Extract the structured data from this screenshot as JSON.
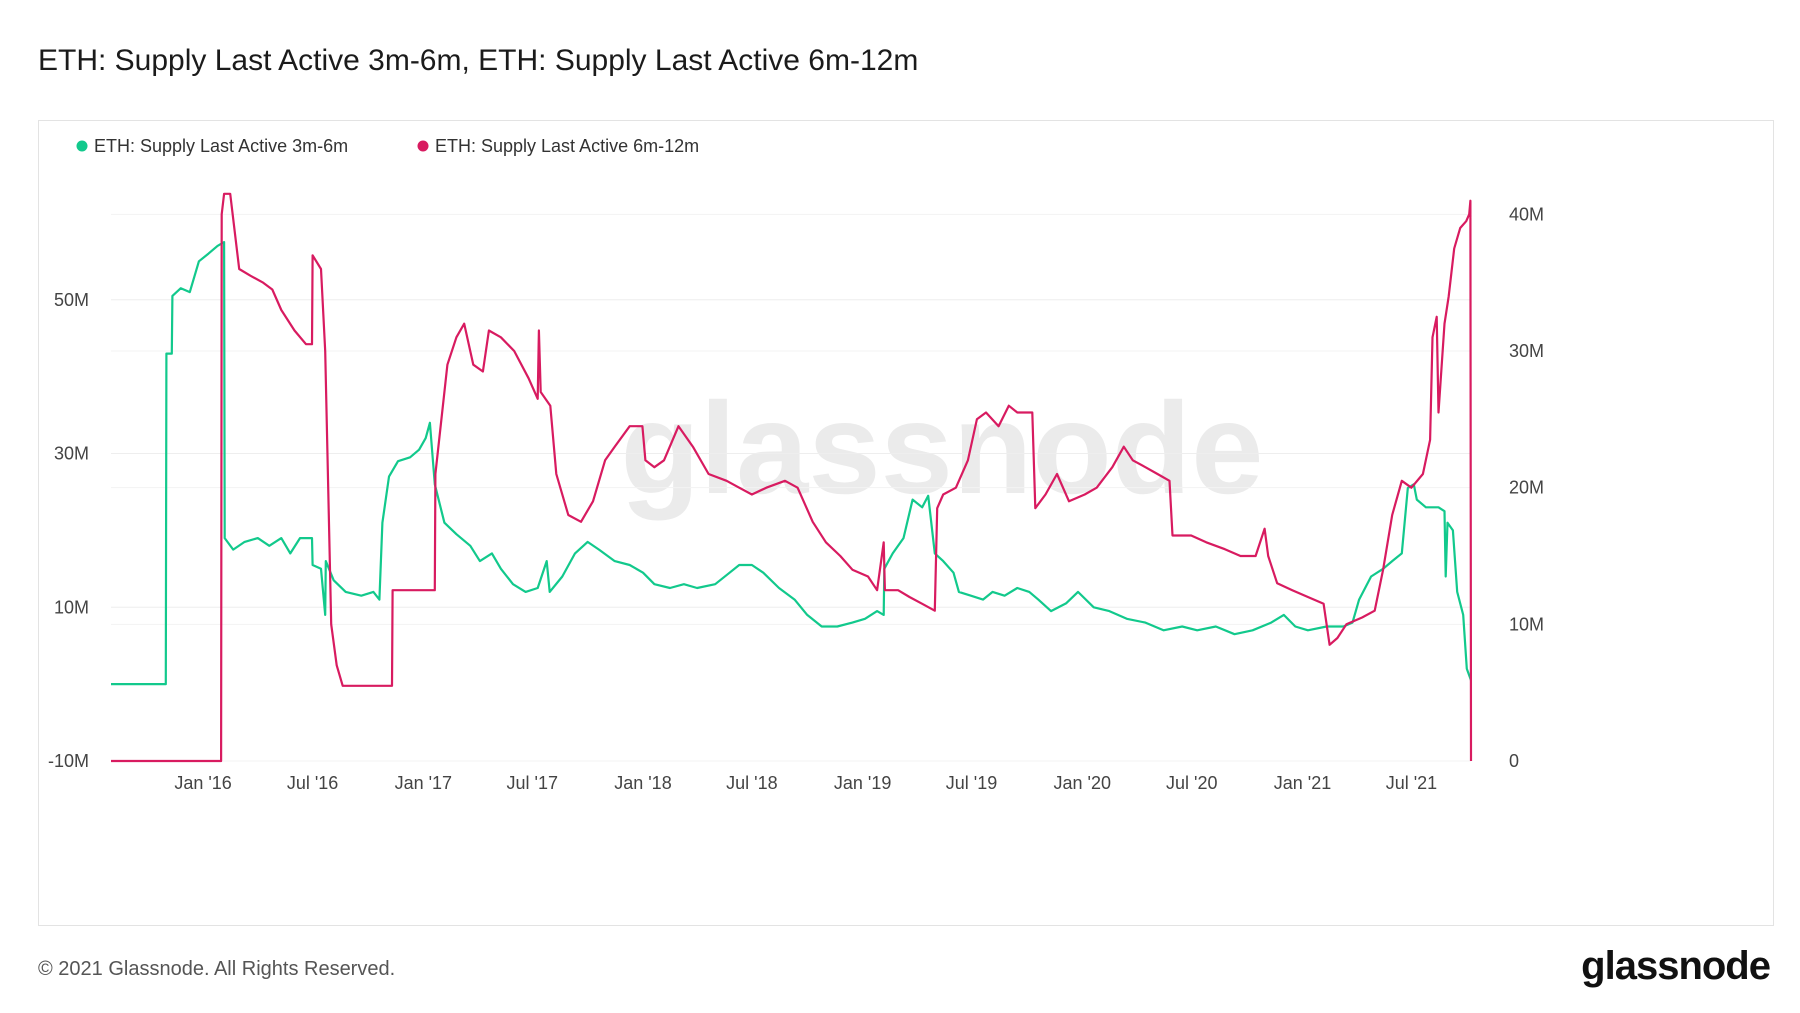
{
  "page": {
    "title": "ETH: Supply Last Active 3m-6m, ETH: Supply Last Active 6m-12m",
    "copyright": "© 2021 Glassnode. All Rights Reserved.",
    "brand": "glassnode",
    "watermark": "glassnode"
  },
  "chart_data": {
    "type": "line",
    "title": "ETH: Supply Last Active 3m-6m, ETH: Supply Last Active 6m-12m",
    "legend_position": "top-left",
    "grid": true,
    "x_domain": [
      "2015-08-01",
      "2021-10-08"
    ],
    "x_ticks": [
      {
        "date": "2016-01-01",
        "label": "Jan '16"
      },
      {
        "date": "2016-07-01",
        "label": "Jul '16"
      },
      {
        "date": "2017-01-01",
        "label": "Jan '17"
      },
      {
        "date": "2017-07-01",
        "label": "Jul '17"
      },
      {
        "date": "2018-01-01",
        "label": "Jan '18"
      },
      {
        "date": "2018-07-01",
        "label": "Jul '18"
      },
      {
        "date": "2019-01-01",
        "label": "Jan '19"
      },
      {
        "date": "2019-07-01",
        "label": "Jul '19"
      },
      {
        "date": "2020-01-01",
        "label": "Jan '20"
      },
      {
        "date": "2020-07-01",
        "label": "Jul '20"
      },
      {
        "date": "2021-01-01",
        "label": "Jan '21"
      },
      {
        "date": "2021-07-01",
        "label": "Jul '21"
      }
    ],
    "y_left": {
      "ylim": [
        -10,
        70
      ],
      "ticks": [
        -10,
        10,
        30,
        50
      ],
      "labels": [
        "-10M",
        "10M",
        "30M",
        "50M"
      ]
    },
    "y_right": {
      "ylim": [
        0,
        45
      ],
      "ticks": [
        0,
        10,
        20,
        30,
        40
      ],
      "labels": [
        "0",
        "10M",
        "20M",
        "30M",
        "40M"
      ]
    },
    "series": [
      {
        "name": "ETH: Supply Last Active 3m-6m",
        "color": "#12c98c",
        "axis": "left",
        "points": [
          [
            "2015-08-01",
            0
          ],
          [
            "2015-10-31",
            0
          ],
          [
            "2015-11-01",
            43
          ],
          [
            "2015-11-10",
            43
          ],
          [
            "2015-11-11",
            50.5
          ],
          [
            "2015-11-25",
            51.5
          ],
          [
            "2015-12-10",
            51
          ],
          [
            "2015-12-25",
            55
          ],
          [
            "2016-01-10",
            56
          ],
          [
            "2016-01-25",
            57
          ],
          [
            "2016-02-05",
            57.5
          ],
          [
            "2016-02-06",
            19
          ],
          [
            "2016-02-20",
            17.5
          ],
          [
            "2016-03-10",
            18.5
          ],
          [
            "2016-04-01",
            19
          ],
          [
            "2016-04-20",
            18
          ],
          [
            "2016-05-10",
            19
          ],
          [
            "2016-05-25",
            17
          ],
          [
            "2016-06-10",
            19
          ],
          [
            "2016-06-30",
            19
          ],
          [
            "2016-07-01",
            15.5
          ],
          [
            "2016-07-15",
            15
          ],
          [
            "2016-07-22",
            9
          ],
          [
            "2016-07-23",
            16
          ],
          [
            "2016-08-05",
            13.5
          ],
          [
            "2016-08-25",
            12
          ],
          [
            "2016-09-20",
            11.5
          ],
          [
            "2016-10-10",
            12
          ],
          [
            "2016-10-20",
            11
          ],
          [
            "2016-10-25",
            21
          ],
          [
            "2016-11-05",
            27
          ],
          [
            "2016-11-20",
            29
          ],
          [
            "2016-12-10",
            29.5
          ],
          [
            "2016-12-25",
            30.5
          ],
          [
            "2017-01-05",
            32
          ],
          [
            "2017-01-12",
            34
          ],
          [
            "2017-01-20",
            26
          ],
          [
            "2017-02-05",
            21
          ],
          [
            "2017-02-25",
            19.5
          ],
          [
            "2017-03-20",
            18
          ],
          [
            "2017-04-05",
            16
          ],
          [
            "2017-04-25",
            17
          ],
          [
            "2017-05-10",
            15
          ],
          [
            "2017-05-30",
            13
          ],
          [
            "2017-06-20",
            12
          ],
          [
            "2017-07-10",
            12.5
          ],
          [
            "2017-07-25",
            16
          ],
          [
            "2017-07-30",
            12
          ],
          [
            "2017-08-20",
            14
          ],
          [
            "2017-09-10",
            17
          ],
          [
            "2017-10-01",
            18.5
          ],
          [
            "2017-10-20",
            17.5
          ],
          [
            "2017-11-15",
            16
          ],
          [
            "2017-12-10",
            15.5
          ],
          [
            "2018-01-01",
            14.5
          ],
          [
            "2018-01-20",
            13
          ],
          [
            "2018-02-15",
            12.5
          ],
          [
            "2018-03-10",
            13
          ],
          [
            "2018-04-01",
            12.5
          ],
          [
            "2018-05-01",
            13
          ],
          [
            "2018-05-25",
            14.5
          ],
          [
            "2018-06-10",
            15.5
          ],
          [
            "2018-07-01",
            15.5
          ],
          [
            "2018-07-20",
            14.5
          ],
          [
            "2018-08-15",
            12.5
          ],
          [
            "2018-09-10",
            11
          ],
          [
            "2018-10-01",
            9
          ],
          [
            "2018-10-25",
            7.5
          ],
          [
            "2018-11-20",
            7.5
          ],
          [
            "2018-12-15",
            8
          ],
          [
            "2019-01-05",
            8.5
          ],
          [
            "2019-01-25",
            9.5
          ],
          [
            "2019-02-05",
            9
          ],
          [
            "2019-02-06",
            15
          ],
          [
            "2019-02-20",
            17
          ],
          [
            "2019-03-10",
            19
          ],
          [
            "2019-03-25",
            24
          ],
          [
            "2019-04-10",
            23
          ],
          [
            "2019-04-20",
            24.5
          ],
          [
            "2019-05-01",
            17
          ],
          [
            "2019-05-15",
            16
          ],
          [
            "2019-06-01",
            14.5
          ],
          [
            "2019-06-10",
            12
          ],
          [
            "2019-06-30",
            11.5
          ],
          [
            "2019-07-20",
            11
          ],
          [
            "2019-08-05",
            12
          ],
          [
            "2019-08-25",
            11.5
          ],
          [
            "2019-09-15",
            12.5
          ],
          [
            "2019-10-05",
            12
          ],
          [
            "2019-10-20",
            11
          ],
          [
            "2019-11-10",
            9.5
          ],
          [
            "2019-12-05",
            10.5
          ],
          [
            "2019-12-25",
            12
          ],
          [
            "2020-01-20",
            10
          ],
          [
            "2020-02-15",
            9.5
          ],
          [
            "2020-03-15",
            8.5
          ],
          [
            "2020-04-15",
            8
          ],
          [
            "2020-05-15",
            7
          ],
          [
            "2020-06-15",
            7.5
          ],
          [
            "2020-07-10",
            7
          ],
          [
            "2020-08-10",
            7.5
          ],
          [
            "2020-09-10",
            6.5
          ],
          [
            "2020-10-10",
            7
          ],
          [
            "2020-11-10",
            8
          ],
          [
            "2020-12-01",
            9
          ],
          [
            "2020-12-20",
            7.5
          ],
          [
            "2021-01-10",
            7
          ],
          [
            "2021-02-10",
            7.5
          ],
          [
            "2021-03-10",
            7.5
          ],
          [
            "2021-03-25",
            8
          ],
          [
            "2021-04-05",
            11
          ],
          [
            "2021-04-25",
            14
          ],
          [
            "2021-05-15",
            15
          ],
          [
            "2021-05-30",
            16
          ],
          [
            "2021-06-15",
            17
          ],
          [
            "2021-06-25",
            25.5
          ],
          [
            "2021-07-05",
            26
          ],
          [
            "2021-07-10",
            24
          ],
          [
            "2021-07-25",
            23
          ],
          [
            "2021-08-15",
            23
          ],
          [
            "2021-08-25",
            22.5
          ],
          [
            "2021-08-27",
            14
          ],
          [
            "2021-08-30",
            21
          ],
          [
            "2021-09-08",
            20
          ],
          [
            "2021-09-15",
            12
          ],
          [
            "2021-09-25",
            9
          ],
          [
            "2021-10-01",
            2
          ],
          [
            "2021-10-08",
            0.5
          ]
        ]
      },
      {
        "name": "ETH: Supply Last Active 6m-12m",
        "color": "#d81b60",
        "axis": "right",
        "points": [
          [
            "2015-08-01",
            0
          ],
          [
            "2016-01-31",
            0
          ],
          [
            "2016-02-01",
            40
          ],
          [
            "2016-02-05",
            41.5
          ],
          [
            "2016-02-15",
            41.5
          ],
          [
            "2016-03-01",
            36
          ],
          [
            "2016-03-20",
            35.5
          ],
          [
            "2016-04-10",
            35
          ],
          [
            "2016-04-25",
            34.5
          ],
          [
            "2016-05-10",
            33
          ],
          [
            "2016-06-01",
            31.5
          ],
          [
            "2016-06-20",
            30.5
          ],
          [
            "2016-06-30",
            30.5
          ],
          [
            "2016-07-01",
            37
          ],
          [
            "2016-07-15",
            36
          ],
          [
            "2016-07-22",
            30
          ],
          [
            "2016-08-01",
            10
          ],
          [
            "2016-08-10",
            7
          ],
          [
            "2016-08-20",
            5.5
          ],
          [
            "2016-09-20",
            5.5
          ],
          [
            "2016-10-20",
            5.5
          ],
          [
            "2016-11-10",
            5.5
          ],
          [
            "2016-11-11",
            12.5
          ],
          [
            "2016-12-01",
            12.5
          ],
          [
            "2016-12-20",
            12.5
          ],
          [
            "2017-01-20",
            12.5
          ],
          [
            "2017-01-21",
            21
          ],
          [
            "2017-02-10",
            29
          ],
          [
            "2017-02-25",
            31
          ],
          [
            "2017-03-10",
            32
          ],
          [
            "2017-03-25",
            29
          ],
          [
            "2017-04-10",
            28.5
          ],
          [
            "2017-04-20",
            31.5
          ],
          [
            "2017-05-10",
            31
          ],
          [
            "2017-06-01",
            30
          ],
          [
            "2017-06-25",
            28
          ],
          [
            "2017-07-10",
            26.5
          ],
          [
            "2017-07-12",
            31.5
          ],
          [
            "2017-07-15",
            27
          ],
          [
            "2017-07-31",
            26
          ],
          [
            "2017-08-10",
            21
          ],
          [
            "2017-08-30",
            18
          ],
          [
            "2017-09-20",
            17.5
          ],
          [
            "2017-10-10",
            19
          ],
          [
            "2017-10-30",
            22
          ],
          [
            "2017-11-15",
            23
          ],
          [
            "2017-12-10",
            24.5
          ],
          [
            "2017-12-31",
            24.5
          ],
          [
            "2018-01-05",
            22
          ],
          [
            "2018-01-20",
            21.5
          ],
          [
            "2018-02-05",
            22
          ],
          [
            "2018-03-01",
            24.5
          ],
          [
            "2018-03-25",
            23
          ],
          [
            "2018-04-20",
            21
          ],
          [
            "2018-05-20",
            20.5
          ],
          [
            "2018-06-10",
            20
          ],
          [
            "2018-07-01",
            19.5
          ],
          [
            "2018-07-25",
            20
          ],
          [
            "2018-08-25",
            20.5
          ],
          [
            "2018-09-15",
            20
          ],
          [
            "2018-10-10",
            17.5
          ],
          [
            "2018-11-01",
            16
          ],
          [
            "2018-11-25",
            15
          ],
          [
            "2018-12-15",
            14
          ],
          [
            "2019-01-10",
            13.5
          ],
          [
            "2019-01-25",
            12.5
          ],
          [
            "2019-02-05",
            16
          ],
          [
            "2019-02-07",
            12.5
          ],
          [
            "2019-03-01",
            12.5
          ],
          [
            "2019-03-20",
            12
          ],
          [
            "2019-04-10",
            11.5
          ],
          [
            "2019-05-01",
            11
          ],
          [
            "2019-05-05",
            18.5
          ],
          [
            "2019-05-15",
            19.5
          ],
          [
            "2019-06-05",
            20
          ],
          [
            "2019-06-25",
            22
          ],
          [
            "2019-07-10",
            25
          ],
          [
            "2019-07-25",
            25.5
          ],
          [
            "2019-08-15",
            24.5
          ],
          [
            "2019-09-01",
            26
          ],
          [
            "2019-09-15",
            25.5
          ],
          [
            "2019-10-10",
            25.5
          ],
          [
            "2019-10-15",
            18.5
          ],
          [
            "2019-11-01",
            19.5
          ],
          [
            "2019-11-20",
            21
          ],
          [
            "2019-12-10",
            19
          ],
          [
            "2020-01-05",
            19.5
          ],
          [
            "2020-01-25",
            20
          ],
          [
            "2020-02-20",
            21.5
          ],
          [
            "2020-03-10",
            23
          ],
          [
            "2020-03-25",
            22
          ],
          [
            "2020-04-15",
            21.5
          ],
          [
            "2020-05-05",
            21
          ],
          [
            "2020-05-25",
            20.5
          ],
          [
            "2020-05-30",
            16.5
          ],
          [
            "2020-06-30",
            16.5
          ],
          [
            "2020-07-25",
            16
          ],
          [
            "2020-08-25",
            15.5
          ],
          [
            "2020-09-20",
            15
          ],
          [
            "2020-10-15",
            15
          ],
          [
            "2020-10-30",
            17
          ],
          [
            "2020-11-05",
            15
          ],
          [
            "2020-11-20",
            13
          ],
          [
            "2020-12-15",
            12.5
          ],
          [
            "2021-01-10",
            12
          ],
          [
            "2021-02-05",
            11.5
          ],
          [
            "2021-02-15",
            8.5
          ],
          [
            "2021-02-28",
            9
          ],
          [
            "2021-03-15",
            10
          ],
          [
            "2021-04-10",
            10.5
          ],
          [
            "2021-05-01",
            11
          ],
          [
            "2021-05-15",
            14
          ],
          [
            "2021-05-30",
            18
          ],
          [
            "2021-06-15",
            20.5
          ],
          [
            "2021-07-01",
            20
          ],
          [
            "2021-07-20",
            21
          ],
          [
            "2021-08-01",
            23.5
          ],
          [
            "2021-08-05",
            31
          ],
          [
            "2021-08-12",
            32.5
          ],
          [
            "2021-08-15",
            25.5
          ],
          [
            "2021-08-25",
            32
          ],
          [
            "2021-09-01",
            34
          ],
          [
            "2021-09-10",
            37.5
          ],
          [
            "2021-09-20",
            39
          ],
          [
            "2021-09-30",
            39.5
          ],
          [
            "2021-10-05",
            40
          ],
          [
            "2021-10-07",
            41
          ],
          [
            "2021-10-08",
            0
          ]
        ]
      }
    ]
  }
}
